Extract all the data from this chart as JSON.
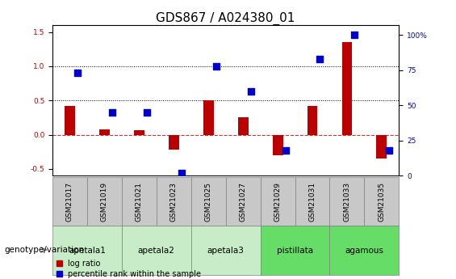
{
  "title": "GDS867 / A024380_01",
  "samples": [
    "GSM21017",
    "GSM21019",
    "GSM21021",
    "GSM21023",
    "GSM21025",
    "GSM21027",
    "GSM21029",
    "GSM21031",
    "GSM21033",
    "GSM21035"
  ],
  "log_ratio": [
    0.42,
    0.08,
    0.06,
    -0.22,
    0.5,
    0.26,
    -0.3,
    0.42,
    1.35,
    -0.35
  ],
  "percentile_rank_pct": [
    73,
    45,
    45,
    2,
    78,
    60,
    18,
    83,
    100,
    18
  ],
  "groups": [
    {
      "name": "apetala1",
      "samples": [
        0,
        1
      ],
      "color": "#c8ecc8"
    },
    {
      "name": "apetala2",
      "samples": [
        2,
        3
      ],
      "color": "#c8ecc8"
    },
    {
      "name": "apetala3",
      "samples": [
        4,
        5
      ],
      "color": "#c8ecc8"
    },
    {
      "name": "pistillata",
      "samples": [
        6,
        7
      ],
      "color": "#66dd66"
    },
    {
      "name": "agamous",
      "samples": [
        8,
        9
      ],
      "color": "#66dd66"
    }
  ],
  "bar_color_red": "#bb0000",
  "bar_color_blue": "#0000cc",
  "sample_box_color": "#c8c8c8",
  "ylim_left": [
    -0.6,
    1.6
  ],
  "ylim_right": [
    0,
    107
  ],
  "yticks_left": [
    -0.5,
    0.0,
    0.5,
    1.0,
    1.5
  ],
  "yticks_right": [
    0,
    25,
    50,
    75,
    100
  ],
  "title_fontsize": 11,
  "tick_fontsize": 6.5,
  "label_fontsize": 7.5,
  "legend_label_red": "log ratio",
  "legend_label_blue": "percentile rank within the sample",
  "genotype_label": "genotype/variation"
}
